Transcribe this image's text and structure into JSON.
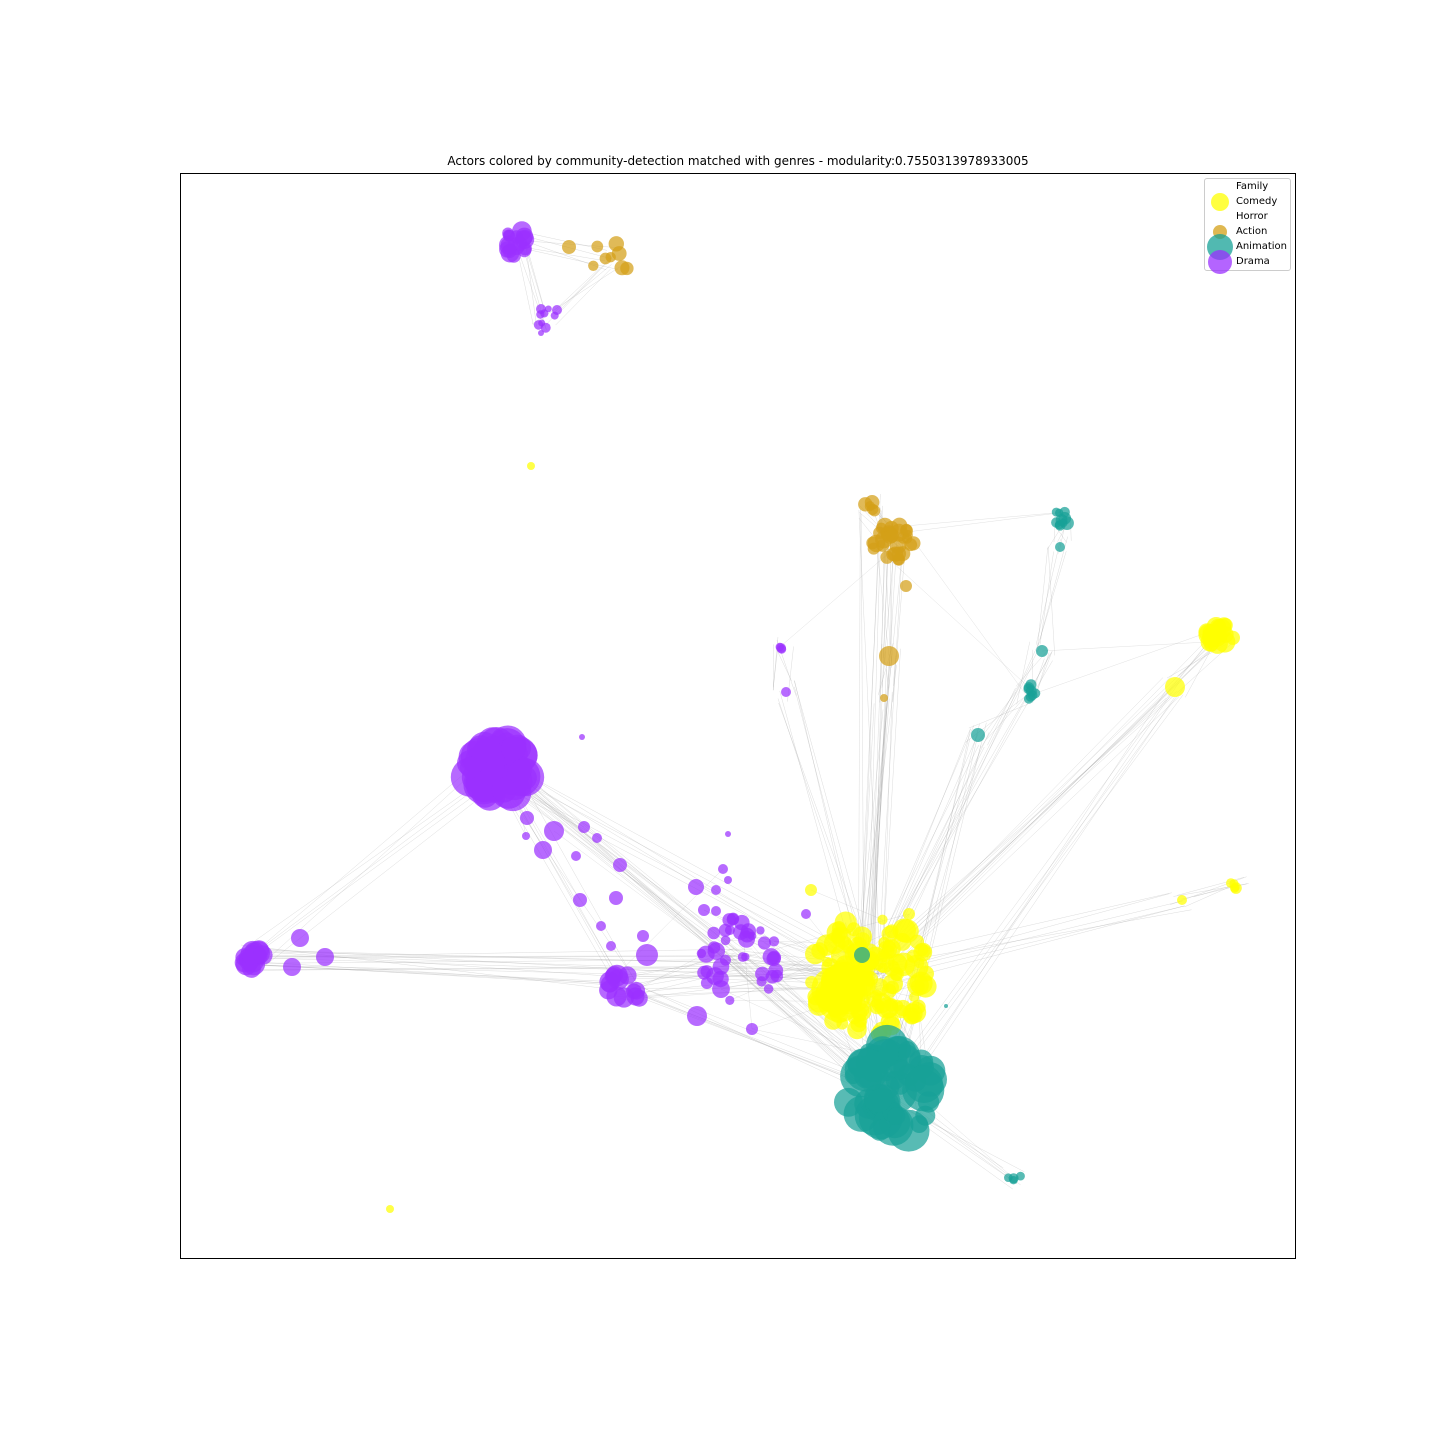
{
  "figure": {
    "title": "Actors colored by community-detection matched with genres - modularity:0.7550313978933005"
  },
  "legend": {
    "items": [
      {
        "label": "Family",
        "color": "#ffffff"
      },
      {
        "label": "Comedy",
        "color": "#ffff00"
      },
      {
        "label": "Horror",
        "color": "#ffffff"
      },
      {
        "label": "Action",
        "color": "#d4a017"
      },
      {
        "label": "Animation",
        "color": "#17a197"
      },
      {
        "label": "Drama",
        "color": "#9b30ff"
      }
    ]
  },
  "colors": {
    "Comedy": "#ffff00",
    "Action": "#d4a017",
    "Animation": "#17a197",
    "Drama": "#9b30ff",
    "edge": "#9a9a9a"
  },
  "modularity": 0.7550313978933005
}
